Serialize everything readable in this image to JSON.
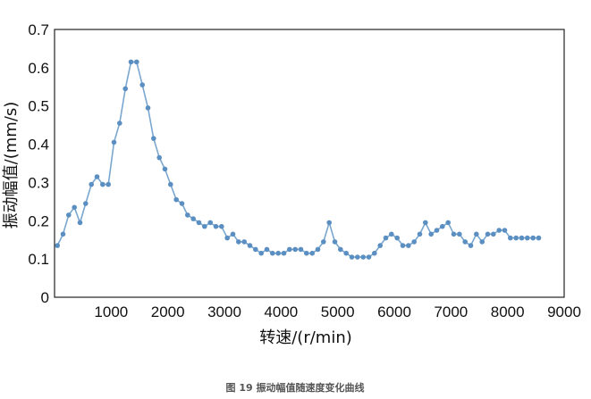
{
  "chart_data": {
    "type": "line",
    "xlabel": "转速/(r/min)",
    "ylabel": "振动幅值/(mm/s)",
    "caption": "图 19    振动幅值随速度变化曲线",
    "xlim": [
      0,
      9000
    ],
    "ylim": [
      0,
      0.7
    ],
    "xticks": [
      1000,
      2000,
      3000,
      4000,
      5000,
      6000,
      7000,
      8000,
      9000
    ],
    "yticks": [
      0,
      0.1,
      0.2,
      0.3,
      0.4,
      0.5,
      0.6,
      0.7
    ],
    "grid": false,
    "legend": "none",
    "colors": {
      "line": "#7aa7cf",
      "marker": "#5b8fc1"
    },
    "series": [
      {
        "x": [
          50,
          150,
          250,
          350,
          450,
          550,
          650,
          750,
          850,
          950,
          1050,
          1150,
          1250,
          1350,
          1450,
          1550,
          1650,
          1750,
          1850,
          1950,
          2050,
          2150,
          2250,
          2350,
          2450,
          2550,
          2650,
          2750,
          2850,
          2950,
          3050,
          3150,
          3250,
          3350,
          3450,
          3550,
          3650,
          3750,
          3850,
          3950,
          4050,
          4150,
          4250,
          4350,
          4450,
          4550,
          4650,
          4750,
          4850,
          4950,
          5050,
          5150,
          5250,
          5350,
          5450,
          5550,
          5650,
          5750,
          5850,
          5950,
          6050,
          6150,
          6250,
          6350,
          6450,
          6550,
          6650,
          6750,
          6850,
          6950,
          7050,
          7150,
          7250,
          7350,
          7450,
          7550,
          7650,
          7750,
          7850,
          7950,
          8050,
          8150,
          8250,
          8350,
          8450,
          8550
        ],
        "y": [
          0.135,
          0.165,
          0.215,
          0.235,
          0.195,
          0.245,
          0.295,
          0.315,
          0.295,
          0.295,
          0.405,
          0.455,
          0.545,
          0.615,
          0.615,
          0.555,
          0.495,
          0.415,
          0.365,
          0.335,
          0.295,
          0.255,
          0.245,
          0.215,
          0.205,
          0.195,
          0.185,
          0.195,
          0.185,
          0.185,
          0.155,
          0.165,
          0.145,
          0.145,
          0.135,
          0.125,
          0.115,
          0.125,
          0.115,
          0.115,
          0.115,
          0.125,
          0.125,
          0.125,
          0.115,
          0.115,
          0.125,
          0.145,
          0.195,
          0.145,
          0.125,
          0.115,
          0.105,
          0.105,
          0.105,
          0.105,
          0.115,
          0.135,
          0.155,
          0.165,
          0.155,
          0.135,
          0.135,
          0.145,
          0.165,
          0.195,
          0.165,
          0.175,
          0.185,
          0.195,
          0.165,
          0.165,
          0.145,
          0.135,
          0.165,
          0.145,
          0.165,
          0.165,
          0.175,
          0.175,
          0.155,
          0.155,
          0.155,
          0.155,
          0.155,
          0.155
        ]
      }
    ]
  }
}
